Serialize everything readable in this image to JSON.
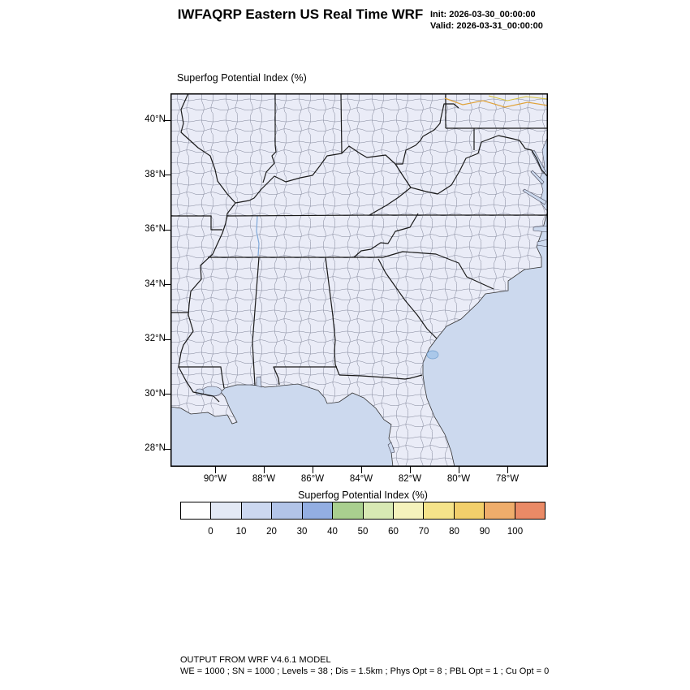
{
  "header": {
    "title": "IWFAQRP Eastern US Real Time WRF",
    "init_line": "Init: 2026-03-30_00:00:00",
    "valid_line": "Valid: 2026-03-31_00:00:00"
  },
  "map": {
    "label": "Superfog Potential Index   (%)",
    "yticks": [
      "40°N",
      "38°N",
      "36°N",
      "34°N",
      "32°N",
      "30°N",
      "28°N"
    ],
    "xticks": [
      "90°W",
      "88°W",
      "86°W",
      "84°W",
      "82°W",
      "80°W",
      "78°W"
    ],
    "land_color": "#eaecf7",
    "ocean_color": "#ccd9ee",
    "border_color": "#1a1a1a"
  },
  "colorbar": {
    "title": "Superfog Potential Index  (%)",
    "tick_labels": [
      "0",
      "10",
      "20",
      "30",
      "40",
      "50",
      "60",
      "70",
      "80",
      "90",
      "100"
    ],
    "colors": [
      "#ffffff",
      "#e3e9f5",
      "#ccd8f0",
      "#b2c4e8",
      "#93aee2",
      "#a9cf8f",
      "#d8e9b4",
      "#f5f2bc",
      "#f5e38a",
      "#f2cf6b",
      "#efad6b",
      "#ea8a66"
    ]
  },
  "footer": {
    "line1": "OUTPUT FROM WRF V4.6.1 MODEL",
    "line2": "WE = 1000 ; SN = 1000 ; Levels = 38 ; Dis = 1.5km ; Phys Opt = 8 ; PBL Opt = 1 ; Cu Opt = 0"
  }
}
